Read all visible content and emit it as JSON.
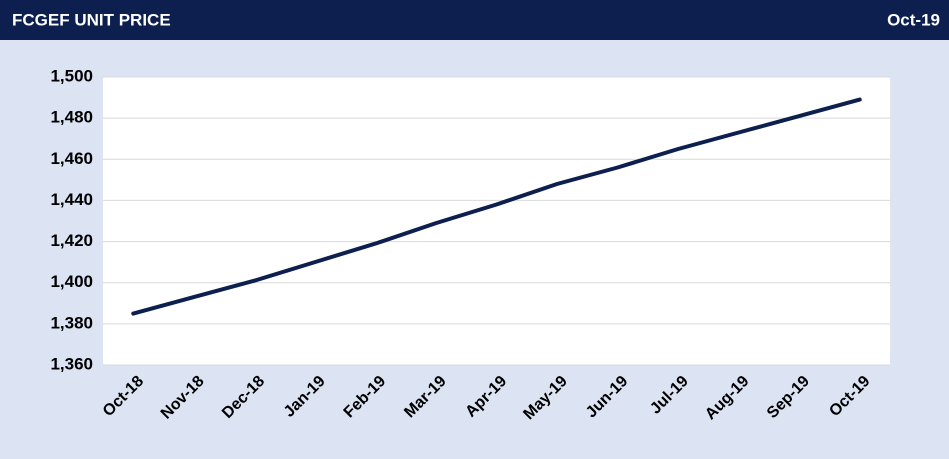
{
  "chart_data": {
    "type": "line",
    "title": "FCGEF UNIT PRICE",
    "subtitle": "Oct-19",
    "categories": [
      "Oct-18",
      "Nov-18",
      "Dec-18",
      "Jan-19",
      "Feb-19",
      "Mar-19",
      "Apr-19",
      "May-19",
      "Jun-19",
      "Jul-19",
      "Aug-19",
      "Sep-19",
      "Oct-19"
    ],
    "values": [
      1385,
      1393,
      1401,
      1410,
      1419,
      1429,
      1438,
      1448,
      1456,
      1465,
      1473,
      1481,
      1489
    ],
    "color": "#0c1f4f",
    "ylim": [
      1360,
      1500
    ],
    "yticks": [
      {
        "value": 1360,
        "label": "1,360"
      },
      {
        "value": 1380,
        "label": "1,380"
      },
      {
        "value": 1400,
        "label": "1,400"
      },
      {
        "value": 1420,
        "label": "1,420"
      },
      {
        "value": 1440,
        "label": "1,440"
      },
      {
        "value": 1460,
        "label": "1,460"
      },
      {
        "value": 1480,
        "label": "1,480"
      },
      {
        "value": 1500,
        "label": "1,500"
      }
    ],
    "grid": true
  }
}
